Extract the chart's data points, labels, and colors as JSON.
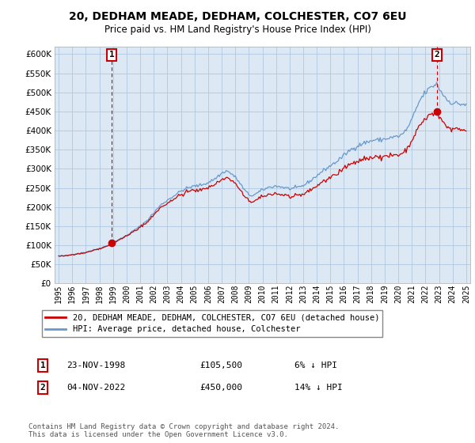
{
  "title_line1": "20, DEDHAM MEADE, DEDHAM, COLCHESTER, CO7 6EU",
  "title_line2": "Price paid vs. HM Land Registry's House Price Index (HPI)",
  "ylim": [
    0,
    620000
  ],
  "yticks": [
    0,
    50000,
    100000,
    150000,
    200000,
    250000,
    300000,
    350000,
    400000,
    450000,
    500000,
    550000,
    600000
  ],
  "background_color": "#ffffff",
  "plot_bg_color": "#dce9f5",
  "grid_color": "#b0c8e0",
  "hpi_color": "#6699cc",
  "price_color": "#cc0000",
  "legend_label_price": "20, DEDHAM MEADE, DEDHAM, COLCHESTER, CO7 6EU (detached house)",
  "legend_label_hpi": "HPI: Average price, detached house, Colchester",
  "sale1_label": "1",
  "sale1_date": "23-NOV-1998",
  "sale1_price": "£105,500",
  "sale1_pct": "6% ↓ HPI",
  "sale2_label": "2",
  "sale2_date": "04-NOV-2022",
  "sale2_price": "£450,000",
  "sale2_pct": "14% ↓ HPI",
  "footer": "Contains HM Land Registry data © Crown copyright and database right 2024.\nThis data is licensed under the Open Government Licence v3.0.",
  "sale1_year": 1998.9,
  "sale1_value": 105500,
  "sale2_year": 2022.85,
  "sale2_value": 450000,
  "xlim_left": 1994.7,
  "xlim_right": 2025.3
}
